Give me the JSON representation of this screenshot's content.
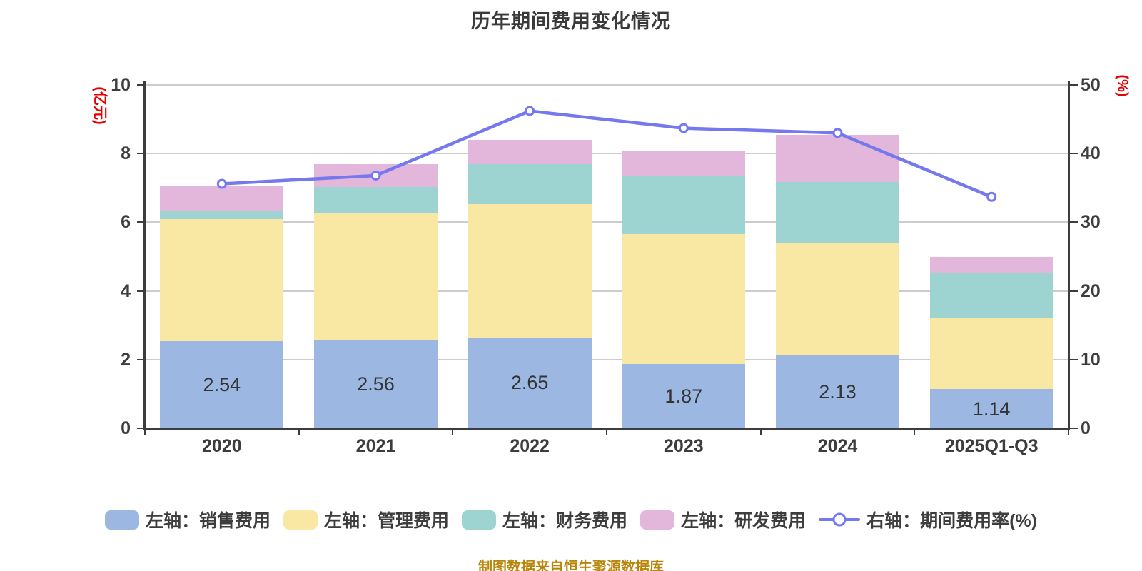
{
  "title": "历年期间费用变化情况",
  "footer_note": "制图数据来自恒生聚源数据库",
  "left_axis_name": "(亿元)",
  "right_axis_name": "(%)",
  "colors": {
    "background": "#ffffff",
    "axis": "#3d3d3d",
    "grid": "#cccccc",
    "tick_text": "#3d3d3d",
    "bar_label": "#333333",
    "axis_name": "#e60000",
    "footer": "#b8860b"
  },
  "chart_data": {
    "type": "bar",
    "subtype": "stacked-bars-with-line",
    "title": "历年期间费用变化情况",
    "categories": [
      "2020",
      "2021",
      "2022",
      "2023",
      "2024",
      "2025Q1-Q3"
    ],
    "bar_series": [
      {
        "name": "左轴：销售费用",
        "color": "#9cb8e2",
        "values": [
          2.54,
          2.56,
          2.65,
          1.87,
          2.13,
          1.14
        ],
        "show_labels": true
      },
      {
        "name": "左轴：管理费用",
        "color": "#f9e8a4",
        "values": [
          3.56,
          3.72,
          3.88,
          3.79,
          3.28,
          2.08
        ],
        "show_labels": false
      },
      {
        "name": "左轴：财务费用",
        "color": "#9dd4d1",
        "values": [
          0.25,
          0.75,
          1.17,
          1.67,
          1.77,
          1.31
        ],
        "show_labels": false
      },
      {
        "name": "左轴：研发费用",
        "color": "#e3b6db",
        "values": [
          0.71,
          0.67,
          0.69,
          0.74,
          1.36,
          0.46
        ],
        "show_labels": false
      }
    ],
    "bar_totals": [
      7.06,
      7.7,
      8.39,
      8.07,
      8.54,
      4.99
    ],
    "line_series": {
      "name": "右轴：期间费用率(%)",
      "color": "#7678ee",
      "values": [
        35.6,
        36.8,
        46.2,
        43.7,
        43.0,
        33.7
      ]
    },
    "left_axis": {
      "label": "(亿元)",
      "min": 0,
      "max": 10,
      "ticks": [
        0,
        2,
        4,
        6,
        8,
        10
      ]
    },
    "right_axis": {
      "label": "(%)",
      "min": 0,
      "max": 50,
      "ticks": [
        0,
        10,
        20,
        30,
        40,
        50
      ]
    },
    "grid": true,
    "legend_position": "bottom"
  }
}
